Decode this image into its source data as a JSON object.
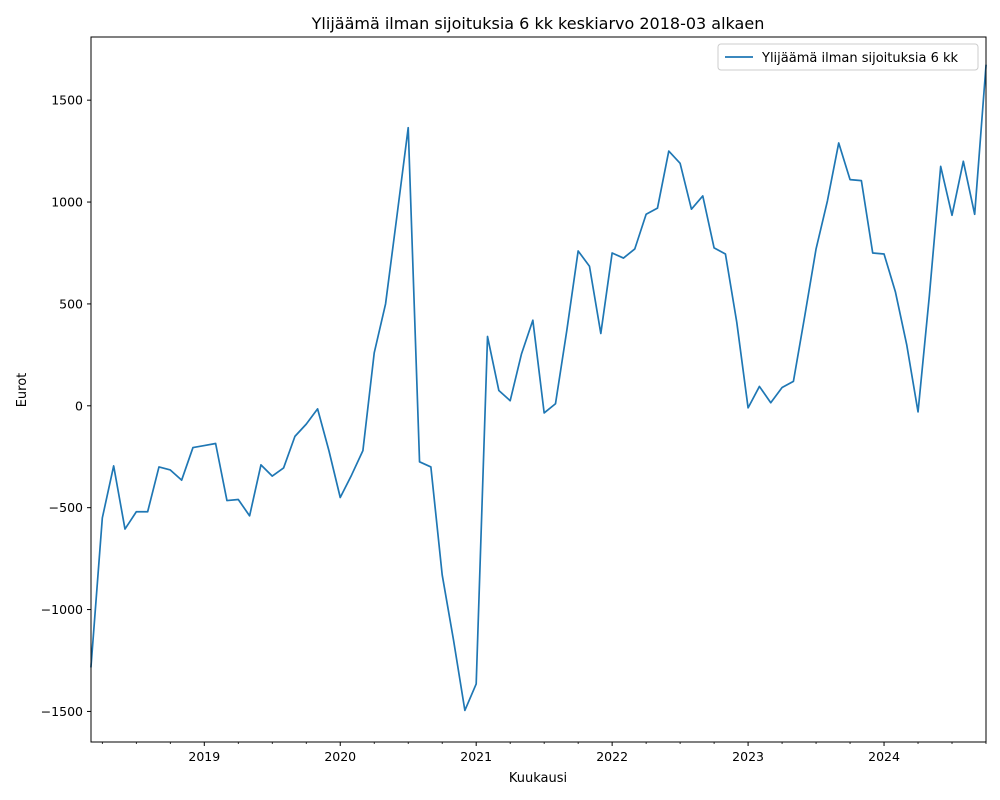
{
  "chart_data": {
    "type": "line",
    "title": "Ylijäämä ilman sijoituksia 6 kk keskiarvo 2018-03 alkaen",
    "xlabel": "Kuukausi",
    "ylabel": "Eurot",
    "x_tick_labels": [
      "2019",
      "2020",
      "2021",
      "2022",
      "2023",
      "2024"
    ],
    "y_ticks": [
      -1500,
      -1000,
      -500,
      0,
      500,
      1000,
      1500
    ],
    "y_tick_labels": [
      "−1500",
      "−1000",
      "−500",
      "0",
      "500",
      "1000",
      "1500"
    ],
    "ylim": [
      -1650,
      1810
    ],
    "xlim": [
      "2018-03",
      "2024-10"
    ],
    "legend": {
      "position": "top-right"
    },
    "grid": false,
    "colors": {
      "line": "#1f77b4"
    },
    "series": [
      {
        "name": "Ylijäämä ilman sijoituksia 6 kk",
        "x": [
          "2018-03",
          "2018-04",
          "2018-05",
          "2018-06",
          "2018-07",
          "2018-08",
          "2018-09",
          "2018-10",
          "2018-11",
          "2018-12",
          "2019-01",
          "2019-02",
          "2019-03",
          "2019-04",
          "2019-05",
          "2019-06",
          "2019-07",
          "2019-08",
          "2019-09",
          "2019-10",
          "2019-11",
          "2019-12",
          "2020-01",
          "2020-02",
          "2020-03",
          "2020-04",
          "2020-05",
          "2020-06",
          "2020-07",
          "2020-08",
          "2020-09",
          "2020-10",
          "2020-11",
          "2020-12",
          "2021-01",
          "2021-02",
          "2021-03",
          "2021-04",
          "2021-05",
          "2021-06",
          "2021-07",
          "2021-08",
          "2021-09",
          "2021-10",
          "2021-11",
          "2021-12",
          "2022-01",
          "2022-02",
          "2022-03",
          "2022-04",
          "2022-05",
          "2022-06",
          "2022-07",
          "2022-08",
          "2022-09",
          "2022-10",
          "2022-11",
          "2022-12",
          "2023-01",
          "2023-02",
          "2023-03",
          "2023-04",
          "2023-05",
          "2023-06",
          "2023-07",
          "2023-08",
          "2023-09",
          "2023-10",
          "2023-11",
          "2023-12",
          "2024-01",
          "2024-02",
          "2024-03",
          "2024-04",
          "2024-05",
          "2024-06",
          "2024-07",
          "2024-08",
          "2024-09",
          "2024-10"
        ],
        "values": [
          -1280,
          -550,
          -295,
          -605,
          -520,
          -520,
          -300,
          -315,
          -365,
          -205,
          -195,
          -185,
          -465,
          -460,
          -540,
          -290,
          -345,
          -305,
          -150,
          -90,
          -15,
          -220,
          -450,
          -340,
          -220,
          260,
          500,
          930,
          1365,
          -275,
          -300,
          -830,
          -1150,
          -1495,
          -1365,
          340,
          75,
          25,
          255,
          420,
          -35,
          10,
          370,
          760,
          685,
          355,
          750,
          725,
          770,
          940,
          970,
          1250,
          1190,
          965,
          1030,
          775,
          745,
          410,
          -10,
          95,
          15,
          90,
          120,
          440,
          770,
          1005,
          1290,
          1110,
          1105,
          750,
          745,
          560,
          300,
          -30,
          540,
          1175,
          935,
          1200,
          940,
          1670
        ]
      }
    ]
  }
}
